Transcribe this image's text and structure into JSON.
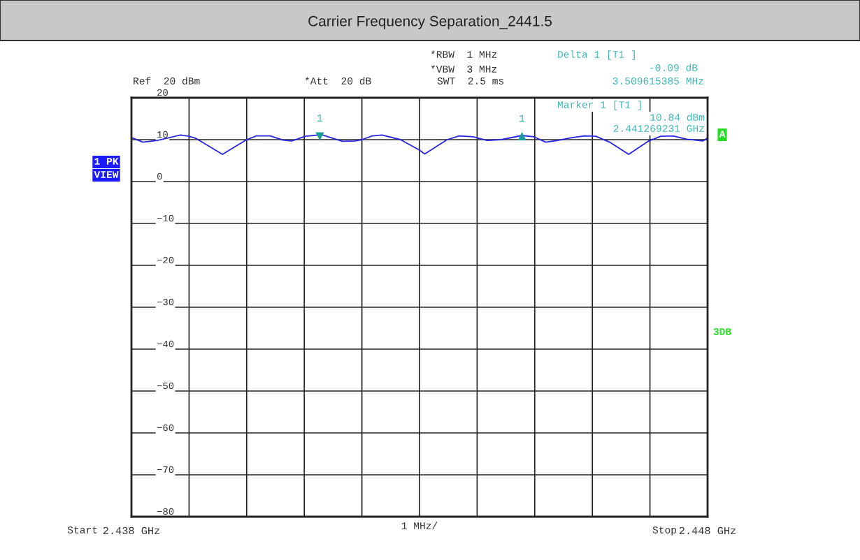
{
  "chart_data": {
    "type": "line",
    "title": "Carrier Frequency Separation_2441.5",
    "x": [
      2.43802,
      2.4382,
      2.43845,
      2.43885,
      2.439,
      2.43912,
      2.43958,
      2.44,
      2.44017,
      2.44041,
      2.44063,
      2.44078,
      2.44102,
      2.4413,
      2.44166,
      2.44188,
      2.442,
      2.44218,
      2.44235,
      2.44267,
      2.443,
      2.44309,
      2.44348,
      2.44369,
      2.44393,
      2.44417,
      2.44442,
      2.44478,
      2.44498,
      2.44519,
      2.4454,
      2.44561,
      2.44586,
      2.44606,
      2.4463,
      2.44663,
      2.44698,
      2.44719,
      2.4474,
      2.44764,
      2.44792,
      2.448
    ],
    "series": [
      {
        "color": "#2424e8",
        "values": [
          10.4,
          9.4,
          9.8,
          11.1,
          10.8,
          10.3,
          6.5,
          10.0,
          10.9,
          10.9,
          9.9,
          9.7,
          10.8,
          11.2,
          9.6,
          9.7,
          10.0,
          10.9,
          11.1,
          10.0,
          7.5,
          6.6,
          10.0,
          10.9,
          10.7,
          9.8,
          10.0,
          11.0,
          10.7,
          9.4,
          9.8,
          10.4,
          10.9,
          10.8,
          9.4,
          6.5,
          9.7,
          10.8,
          10.9,
          10.1,
          9.7,
          10.4
        ]
      }
    ],
    "xlim": [
      2.438,
      2.448
    ],
    "xticks": [
      {
        "value": 2.438,
        "label": "2.438 GHz"
      },
      {
        "value": 2.439,
        "label": null
      },
      {
        "value": 2.44,
        "label": null
      },
      {
        "value": 2.441,
        "label": null
      },
      {
        "value": 2.442,
        "label": null
      },
      {
        "value": 2.443,
        "label": null
      },
      {
        "value": 2.444,
        "label": null
      },
      {
        "value": 2.445,
        "label": null
      },
      {
        "value": 2.446,
        "label": null
      },
      {
        "value": 2.447,
        "label": null
      },
      {
        "value": 2.448,
        "label": "2.448 GHz"
      }
    ],
    "ylim": [
      -80,
      20
    ],
    "yticks": [
      {
        "value": 20,
        "label": "20"
      },
      {
        "value": 10,
        "label": "10"
      },
      {
        "value": 0,
        "label": "0"
      },
      {
        "value": -10,
        "label": "−10"
      },
      {
        "value": -20,
        "label": "−20"
      },
      {
        "value": -30,
        "label": "−30"
      },
      {
        "value": -40,
        "label": "−40"
      },
      {
        "value": -50,
        "label": "−50"
      },
      {
        "value": -60,
        "label": "−60"
      },
      {
        "value": -70,
        "label": "−70"
      },
      {
        "value": -80,
        "label": "−80"
      }
    ],
    "grid": true,
    "line_style": "solid",
    "marker": "none",
    "annotations": [
      "Ref  20 dBm",
      "*Att  20 dB",
      "*RBW  1 MHz",
      "*VBW  3 MHz",
      "SWT  2.5 ms",
      "Delta 1 [T1 ]",
      "-0.09 dB",
      "3.509615385 MHz",
      "Marker 1 [T1 ]",
      "10.84 dBm",
      "2.441269231 GHz",
      "1 PK",
      "VIEW",
      "A",
      "3DB",
      "1 MHz/",
      "Start",
      "Stop",
      {
        "text": "1",
        "x": 2.441269231,
        "y": 10.84
      },
      {
        "text": "1",
        "x": 2.444778846,
        "y": 10.75
      }
    ]
  }
}
